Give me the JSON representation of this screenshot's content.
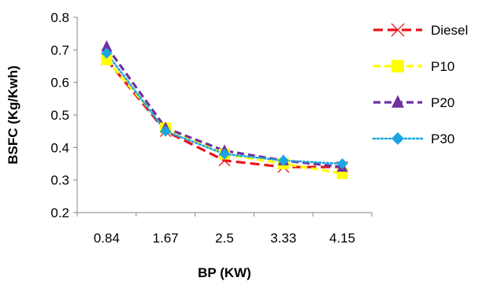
{
  "chart_data": {
    "type": "line",
    "title": "",
    "xlabel": "BP (KW)",
    "ylabel": "BSFC (Kg/Kwh)",
    "categories": [
      "0.84",
      "1.67",
      "2.5",
      "3.33",
      "4.15"
    ],
    "ylim": [
      0.2,
      0.8
    ],
    "yticks": [
      "0.2",
      "0.3",
      "0.4",
      "0.5",
      "0.6",
      "0.7",
      "0.8"
    ],
    "grid": false,
    "legend_position": "right",
    "series": [
      {
        "name": "Diesel",
        "values": [
          0.67,
          0.45,
          0.36,
          0.34,
          0.34
        ],
        "color": "#e8141b",
        "dash": "long-dash",
        "marker": "cross"
      },
      {
        "name": "P10",
        "values": [
          0.67,
          0.46,
          0.38,
          0.35,
          0.32
        ],
        "color": "#ffff00",
        "dash": "dash",
        "marker": "square"
      },
      {
        "name": "P20",
        "values": [
          0.71,
          0.46,
          0.39,
          0.36,
          0.34
        ],
        "color": "#7030a0",
        "dash": "dash",
        "marker": "triangle"
      },
      {
        "name": "P30",
        "values": [
          0.69,
          0.45,
          0.38,
          0.36,
          0.35
        ],
        "color": "#1ba6e0",
        "dash": "dot",
        "marker": "diamond"
      }
    ]
  }
}
